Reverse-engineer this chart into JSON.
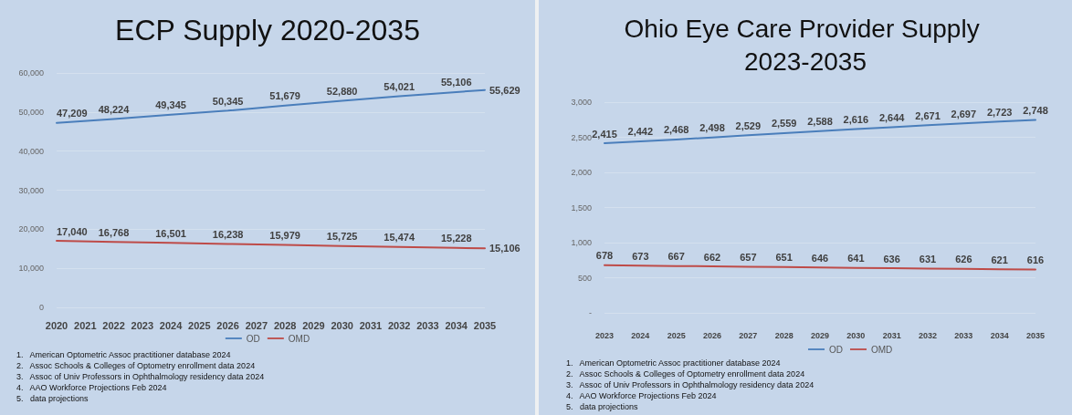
{
  "chart_data": [
    {
      "type": "line",
      "title": "ECP Supply 2020-2035",
      "xlim": [
        2020,
        2035
      ],
      "xticks": [
        2020,
        2021,
        2022,
        2023,
        2024,
        2025,
        2026,
        2027,
        2028,
        2029,
        2030,
        2031,
        2032,
        2033,
        2034,
        2035
      ],
      "ylim": [
        0,
        60000
      ],
      "yticks": [
        0,
        {
          "value": 10000,
          "label": "10,000"
        },
        {
          "value": 20000,
          "label": "20,000"
        },
        {
          "value": 30000,
          "label": "30,000"
        },
        {
          "value": 40000,
          "label": "40,000"
        },
        {
          "value": 50000,
          "label": "50,000"
        },
        {
          "value": 60000,
          "label": "60,000"
        }
      ],
      "grid": "y",
      "legend": "bottom",
      "marker": "none",
      "line_style": "solid",
      "series": [
        {
          "name": "OD",
          "color": "#4a7ebb",
          "x": [
            2020,
            2022,
            2024,
            2026,
            2028,
            2030,
            2032,
            2034,
            2035
          ],
          "values": [
            47209,
            48224,
            49345,
            50345,
            51679,
            52880,
            54021,
            55106,
            55629
          ],
          "value_labels": [
            "47,209",
            "48,224",
            "49,345",
            "50,345",
            "51,679",
            "52,880",
            "54,021",
            "55,106",
            "55,629"
          ]
        },
        {
          "name": "OMD",
          "color": "#be4b48",
          "x": [
            2020,
            2022,
            2024,
            2026,
            2028,
            2030,
            2032,
            2034,
            2035
          ],
          "values": [
            17040,
            16768,
            16501,
            16238,
            15979,
            15725,
            15474,
            15228,
            15106
          ],
          "value_labels": [
            "17,040",
            "16,768",
            "16,501",
            "16,238",
            "15,979",
            "15,725",
            "15,474",
            "15,228",
            "15,106"
          ]
        }
      ],
      "annotations": [
        "1.   American Optometric Assoc practitioner database 2024",
        "2.   Assoc Schools & Colleges of Optometry enrollment data 2024",
        "3.   Assoc of Univ Professors in Ophthalmology residency data 2024",
        "4.   AAO Workforce Projections Feb 2024",
        "5.   data projections"
      ]
    },
    {
      "type": "line",
      "title": "Ohio Eye Care Provider Supply 2023-2035",
      "xlim": [
        2023,
        2035
      ],
      "xticks": [
        2023,
        2024,
        2025,
        2026,
        2027,
        2028,
        2029,
        2030,
        2031,
        2032,
        2033,
        2034,
        2035
      ],
      "ylim": [
        0,
        3000
      ],
      "yticks": [
        {
          "value": 0,
          "label": "-"
        },
        500,
        {
          "value": 1000,
          "label": "1,000"
        },
        {
          "value": 1500,
          "label": "1,500"
        },
        {
          "value": 2000,
          "label": "2,000"
        },
        {
          "value": 2500,
          "label": "2,500"
        },
        {
          "value": 3000,
          "label": "3,000"
        }
      ],
      "grid": "y",
      "legend": "bottom",
      "marker": "none",
      "line_style": "solid",
      "series": [
        {
          "name": "OD",
          "color": "#4a7ebb",
          "x": [
            2023,
            2024,
            2025,
            2026,
            2027,
            2028,
            2029,
            2030,
            2031,
            2032,
            2033,
            2034,
            2035
          ],
          "values": [
            2415,
            2442,
            2468,
            2498,
            2529,
            2559,
            2588,
            2616,
            2644,
            2671,
            2697,
            2723,
            2748
          ],
          "value_labels": [
            "2,415",
            "2,442",
            "2,468",
            "2,498",
            "2,529",
            "2,559",
            "2,588",
            "2,616",
            "2,644",
            "2,671",
            "2,697",
            "2,723",
            "2,748"
          ]
        },
        {
          "name": "OMD",
          "color": "#be4b48",
          "x": [
            2023,
            2024,
            2025,
            2026,
            2027,
            2028,
            2029,
            2030,
            2031,
            2032,
            2033,
            2034,
            2035
          ],
          "values": [
            678,
            673,
            667,
            662,
            657,
            651,
            646,
            641,
            636,
            631,
            626,
            621,
            616
          ],
          "data_labels": true
        }
      ],
      "annotations": [
        "1.   American Optometric Assoc practitioner database 2024",
        "2.   Assoc Schools & Colleges of Optometry enrollment data 2024",
        "3.   Assoc of Univ Professors in Ophthalmology residency data 2024",
        "4.   AAO Workforce Projections Feb 2024",
        "5.   data projections"
      ]
    }
  ]
}
